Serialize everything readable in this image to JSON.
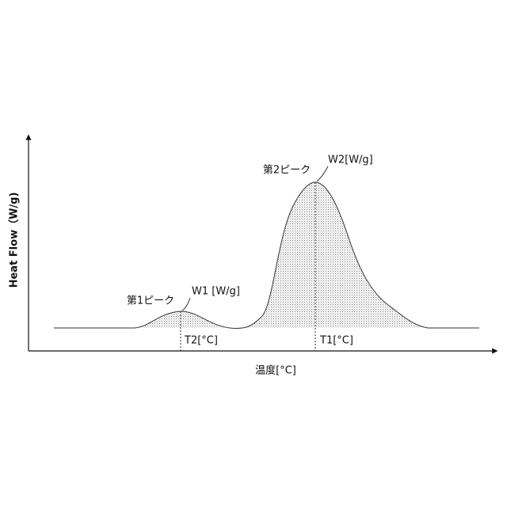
{
  "axes": {
    "y_label": "Heat Flow（W/g)",
    "x_label": "温度[°C]"
  },
  "peaks": [
    {
      "name": "第1ピーク",
      "height_label": "W1 [W/g]",
      "temp_label": "T2[°C]"
    },
    {
      "name": "第2ピーク",
      "height_label": "W2[W/g]",
      "temp_label": "T1[°C]"
    }
  ]
}
